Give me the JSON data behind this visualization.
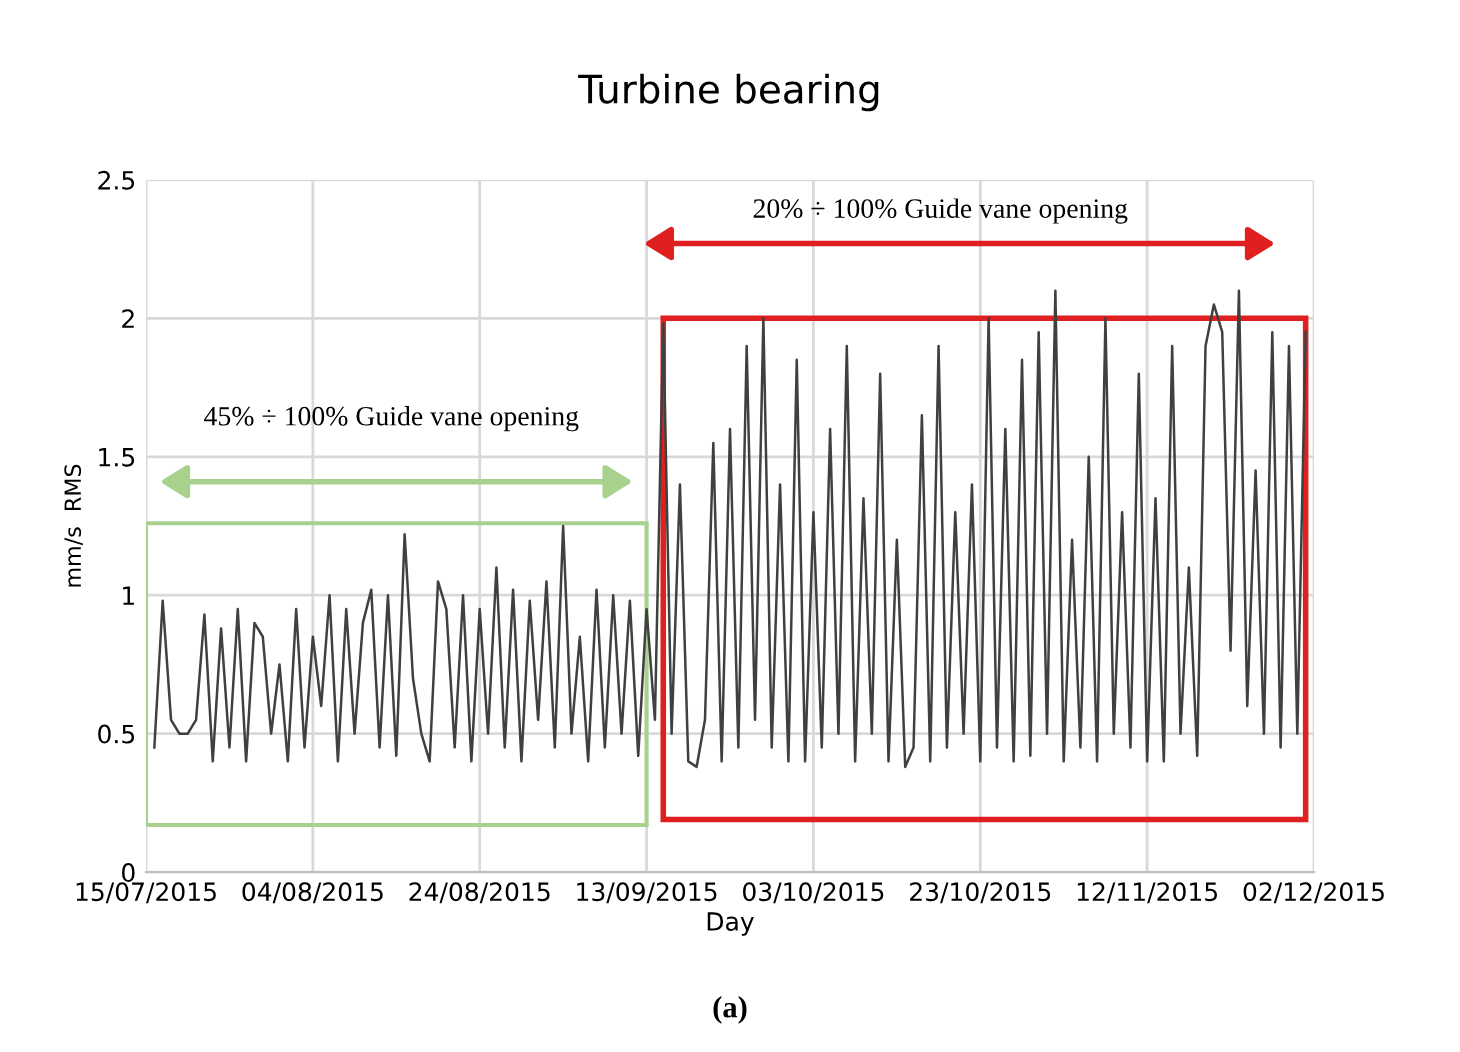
{
  "chart_data": {
    "type": "line",
    "title": "Turbine bearing",
    "xlabel": "Day",
    "ylabel": "mm/s  RMS",
    "x": [
      "2015-07-16",
      "2015-07-17",
      "2015-07-18",
      "2015-07-19",
      "2015-07-20",
      "2015-07-21",
      "2015-07-22",
      "2015-07-23",
      "2015-07-24",
      "2015-07-25",
      "2015-07-26",
      "2015-07-27",
      "2015-07-28",
      "2015-07-29",
      "2015-07-30",
      "2015-07-31",
      "2015-08-01",
      "2015-08-02",
      "2015-08-03",
      "2015-08-04",
      "2015-08-05",
      "2015-08-06",
      "2015-08-07",
      "2015-08-08",
      "2015-08-09",
      "2015-08-10",
      "2015-08-11",
      "2015-08-12",
      "2015-08-13",
      "2015-08-14",
      "2015-08-15",
      "2015-08-16",
      "2015-08-17",
      "2015-08-18",
      "2015-08-19",
      "2015-08-20",
      "2015-08-21",
      "2015-08-22",
      "2015-08-23",
      "2015-08-24",
      "2015-08-25",
      "2015-08-26",
      "2015-08-27",
      "2015-08-28",
      "2015-08-29",
      "2015-08-30",
      "2015-08-31",
      "2015-09-01",
      "2015-09-02",
      "2015-09-03",
      "2015-09-04",
      "2015-09-05",
      "2015-09-06",
      "2015-09-07",
      "2015-09-08",
      "2015-09-09",
      "2015-09-10",
      "2015-09-11",
      "2015-09-12",
      "2015-09-13",
      "2015-09-14",
      "2015-09-15",
      "2015-09-16",
      "2015-09-17",
      "2015-09-18",
      "2015-09-19",
      "2015-09-20",
      "2015-09-21",
      "2015-09-22",
      "2015-09-23",
      "2015-09-24",
      "2015-09-25",
      "2015-09-26",
      "2015-09-27",
      "2015-09-28",
      "2015-09-29",
      "2015-09-30",
      "2015-10-01",
      "2015-10-02",
      "2015-10-03",
      "2015-10-04",
      "2015-10-05",
      "2015-10-06",
      "2015-10-07",
      "2015-10-08",
      "2015-10-09",
      "2015-10-10",
      "2015-10-11",
      "2015-10-12",
      "2015-10-13",
      "2015-10-14",
      "2015-10-15",
      "2015-10-16",
      "2015-10-17",
      "2015-10-18",
      "2015-10-19",
      "2015-10-20",
      "2015-10-21",
      "2015-10-22",
      "2015-10-23",
      "2015-10-24",
      "2015-10-25",
      "2015-10-26",
      "2015-10-27",
      "2015-10-28",
      "2015-10-29",
      "2015-10-30",
      "2015-10-31",
      "2015-11-01",
      "2015-11-02",
      "2015-11-03",
      "2015-11-04",
      "2015-11-05",
      "2015-11-06",
      "2015-11-07",
      "2015-11-08",
      "2015-11-09",
      "2015-11-10",
      "2015-11-11",
      "2015-11-12",
      "2015-11-13",
      "2015-11-14",
      "2015-11-15",
      "2015-11-16",
      "2015-11-17",
      "2015-11-18",
      "2015-11-19",
      "2015-11-20",
      "2015-11-21",
      "2015-11-22",
      "2015-11-23",
      "2015-11-24",
      "2015-11-25",
      "2015-11-26",
      "2015-11-27",
      "2015-11-28",
      "2015-11-29",
      "2015-11-30",
      "2015-12-01"
    ],
    "series": [
      {
        "color": "#404040",
        "values": [
          0.45,
          0.98,
          0.55,
          0.5,
          0.5,
          0.55,
          0.93,
          0.4,
          0.88,
          0.45,
          0.95,
          0.4,
          0.9,
          0.85,
          0.5,
          0.75,
          0.4,
          0.95,
          0.45,
          0.85,
          0.6,
          1.0,
          0.4,
          0.95,
          0.5,
          0.9,
          1.02,
          0.45,
          1.0,
          0.42,
          1.22,
          0.7,
          0.5,
          0.4,
          1.05,
          0.95,
          0.45,
          1.0,
          0.4,
          0.95,
          0.5,
          1.1,
          0.45,
          1.02,
          0.4,
          0.98,
          0.55,
          1.05,
          0.45,
          1.25,
          0.5,
          0.85,
          0.4,
          1.02,
          0.45,
          1.0,
          0.5,
          0.98,
          0.42,
          0.95,
          0.55,
          1.98,
          0.5,
          1.4,
          0.4,
          0.38,
          0.55,
          1.55,
          0.4,
          1.6,
          0.45,
          1.9,
          0.55,
          2.0,
          0.45,
          1.4,
          0.4,
          1.85,
          0.4,
          1.3,
          0.45,
          1.6,
          0.5,
          1.9,
          0.4,
          1.35,
          0.5,
          1.8,
          0.4,
          1.2,
          0.38,
          0.45,
          1.65,
          0.4,
          1.9,
          0.45,
          1.3,
          0.5,
          1.4,
          0.4,
          2.0,
          0.45,
          1.6,
          0.4,
          1.85,
          0.42,
          1.95,
          0.5,
          2.1,
          0.4,
          1.2,
          0.45,
          1.5,
          0.4,
          2.0,
          0.5,
          1.3,
          0.45,
          1.8,
          0.4,
          1.35,
          0.4,
          1.9,
          0.5,
          1.1,
          0.42,
          1.9,
          2.05,
          1.95,
          0.8,
          2.1,
          0.6,
          1.45,
          0.5,
          1.95,
          0.45,
          1.9,
          0.5,
          1.95
        ]
      }
    ],
    "xlim": [
      "2015-07-15",
      "2015-12-02"
    ],
    "xticks": [
      {
        "value": "2015-07-15",
        "label": "15/07/2015"
      },
      {
        "value": "2015-08-04",
        "label": "04/08/2015"
      },
      {
        "value": "2015-08-24",
        "label": "24/08/2015"
      },
      {
        "value": "2015-09-13",
        "label": "13/09/2015"
      },
      {
        "value": "2015-10-03",
        "label": "03/10/2015"
      },
      {
        "value": "2015-10-23",
        "label": "23/10/2015"
      },
      {
        "value": "2015-11-12",
        "label": "12/11/2015"
      },
      {
        "value": "2015-12-02",
        "label": "02/12/2015"
      }
    ],
    "ylim": [
      0,
      2.5
    ],
    "yticks": [
      0,
      0.5,
      1,
      1.5,
      2,
      2.5
    ],
    "grid": true,
    "legend": false,
    "marker": "none",
    "line_style": "solid",
    "annotations": [
      "45% ÷ 100% Guide vane opening",
      "20% ÷ 100% Guide vane opening",
      "(a)"
    ]
  }
}
